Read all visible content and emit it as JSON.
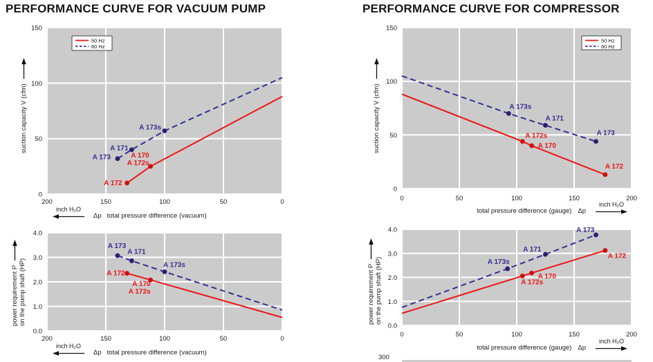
{
  "columns": [
    {
      "title": "PERFORMANCE CURVE FOR VACUUM PUMP"
    },
    {
      "title": "PERFORMANCE CURVE FOR COMPRESSOR"
    }
  ],
  "colors": {
    "hz50": "#ee1414",
    "hz60": "#362e92",
    "marker_hz50": "#c01212",
    "marker_hz60": "#27215f",
    "panel": "#cbcbcb",
    "grid": "#ffffff",
    "text": "#1a1a1a"
  },
  "cutoff": {
    "label": "300"
  },
  "chart_data": [
    {
      "id": "vacuum-suction-capacity",
      "type": "line",
      "ylabel": [
        "suction capacity V (cfm)"
      ],
      "xlabel": "total pressure difference (vacuum)",
      "dp": "Δp",
      "x_unit": "inch H₂O",
      "x_arrow": "left",
      "x_reversed": true,
      "xlim": [
        0,
        200
      ],
      "xticks": [
        0,
        50,
        100,
        150,
        200
      ],
      "xtick_labels": [
        "0",
        "50",
        "100",
        "150",
        "200"
      ],
      "ylim": [
        0,
        150
      ],
      "yticks": [
        0,
        50,
        100,
        150
      ],
      "ytick_labels": [
        "0",
        "50",
        "100",
        "150"
      ],
      "grid": true,
      "legend": {
        "position": "top-left"
      },
      "series": [
        {
          "name": "50 Hz",
          "color_key": "hz50",
          "dash": false,
          "points": [
            {
              "x": 132,
              "y": 10,
              "label": [
                "A 172"
              ],
              "anchor": "end",
              "dx": -7,
              "dy": 3,
              "marker": true
            },
            {
              "x": 112,
              "y": 25,
              "label": [
                "A 170",
                "A 172s"
              ],
              "anchor": "end",
              "dx": -2,
              "dy": -13,
              "marker": true
            },
            {
              "x": 0,
              "y": 88,
              "marker": false
            }
          ]
        },
        {
          "name": "60 Hz",
          "color_key": "hz60",
          "dash": true,
          "points": [
            {
              "x": 140,
              "y": 32,
              "label": [
                "A 173"
              ],
              "anchor": "end",
              "dx": -10,
              "dy": 1,
              "marker": true
            },
            {
              "x": 128,
              "y": 40,
              "label": [
                "A 171"
              ],
              "anchor": "end",
              "dx": -5,
              "dy": 1,
              "marker": true
            },
            {
              "x": 100,
              "y": 57,
              "label": [
                "A 173s"
              ],
              "anchor": "end",
              "dx": -5,
              "dy": -2,
              "marker": true
            },
            {
              "x": 0,
              "y": 105,
              "marker": false
            }
          ]
        }
      ]
    },
    {
      "id": "vacuum-power-requirement",
      "type": "line",
      "ylabel": [
        "power requirement P",
        "on the pump shaft (HP)"
      ],
      "xlabel": "total pressure difference (vacuum)",
      "dp": "Δp",
      "x_unit": "inch H₂O",
      "x_arrow": "left",
      "x_reversed": true,
      "xlim": [
        0,
        200
      ],
      "xticks": [
        0,
        50,
        100,
        150,
        200
      ],
      "xtick_labels": [
        "0",
        "50",
        "100",
        "150",
        "200"
      ],
      "ylim": [
        0,
        4
      ],
      "yticks": [
        0,
        1,
        2,
        3,
        4
      ],
      "ytick_labels": [
        "0.0",
        "1.0",
        "2.0",
        "3.0",
        "4.0"
      ],
      "grid": true,
      "legend": null,
      "series": [
        {
          "name": "50 Hz",
          "color_key": "hz50",
          "dash": false,
          "points": [
            {
              "x": 132,
              "y": 2.35,
              "label": [
                "A 172"
              ],
              "anchor": "end",
              "dx": -3,
              "dy": 3,
              "marker": true
            },
            {
              "x": 112,
              "y": 2.08,
              "label": [
                "A 170",
                "A 172s"
              ],
              "anchor": "end",
              "dx": 0,
              "dy": 9,
              "marker": true
            },
            {
              "x": 0,
              "y": 0.55,
              "marker": false
            }
          ]
        },
        {
          "name": "60 Hz",
          "color_key": "hz60",
          "dash": true,
          "points": [
            {
              "x": 140,
              "y": 3.07,
              "label": [
                "A 173"
              ],
              "anchor": "middle",
              "dx": -1,
              "dy": -11,
              "marker": true
            },
            {
              "x": 128,
              "y": 2.86,
              "label": [
                "A 171"
              ],
              "anchor": "middle",
              "dx": 7,
              "dy": -10,
              "marker": true
            },
            {
              "x": 100,
              "y": 2.41,
              "label": [
                "A 173s"
              ],
              "anchor": "start",
              "dx": -2,
              "dy": -7,
              "marker": true
            },
            {
              "x": 0,
              "y": 0.85,
              "marker": false
            }
          ]
        }
      ]
    },
    {
      "id": "compressor-suction-capacity",
      "type": "line",
      "ylabel": [
        "suction capacity V (cfm)"
      ],
      "xlabel": "total pressure difference (gauge)",
      "dp": "Δp",
      "x_unit": "inch H₂O",
      "x_arrow": "right",
      "x_reversed": false,
      "xlim": [
        0,
        200
      ],
      "xticks": [
        0,
        50,
        100,
        150,
        200
      ],
      "xtick_labels": [
        "0",
        "50",
        "100",
        "150",
        "200"
      ],
      "ylim": [
        0,
        150
      ],
      "yticks": [
        0,
        50,
        100,
        150
      ],
      "ytick_labels": [
        "0",
        "50",
        "100",
        "150"
      ],
      "grid": true,
      "legend": {
        "position": "top-right"
      },
      "series": [
        {
          "name": "50 Hz",
          "color_key": "hz50",
          "dash": false,
          "points": [
            {
              "x": 0,
              "y": 88,
              "marker": false
            },
            {
              "x": 105,
              "y": 44,
              "label": [
                "A 172s"
              ],
              "anchor": "start",
              "dx": 4,
              "dy": -5,
              "marker": true
            },
            {
              "x": 113,
              "y": 40,
              "label": [
                "A 170"
              ],
              "anchor": "start",
              "dx": 9,
              "dy": 3,
              "marker": true
            },
            {
              "x": 177,
              "y": 13,
              "label": [
                "A 172"
              ],
              "anchor": "start",
              "dx": 0,
              "dy": -9,
              "marker": true
            }
          ]
        },
        {
          "name": "60 Hz",
          "color_key": "hz60",
          "dash": true,
          "points": [
            {
              "x": 0,
              "y": 105,
              "marker": false
            },
            {
              "x": 93,
              "y": 70,
              "label": [
                "A 173s"
              ],
              "anchor": "start",
              "dx": 1,
              "dy": -7,
              "marker": true
            },
            {
              "x": 125,
              "y": 59,
              "label": [
                "A 171"
              ],
              "anchor": "start",
              "dx": 0,
              "dy": -7,
              "marker": true
            },
            {
              "x": 169,
              "y": 44,
              "label": [
                "A 173"
              ],
              "anchor": "start",
              "dx": 1,
              "dy": -9,
              "marker": true
            }
          ]
        }
      ]
    },
    {
      "id": "compressor-power-requirement",
      "type": "line",
      "ylabel": [
        "power requirement P",
        "on the pump shaft (HP)"
      ],
      "xlabel": "total pressure difference (gauge)",
      "dp": "Δp",
      "x_unit": "inch H₂O",
      "x_arrow": "right",
      "x_reversed": false,
      "xlim": [
        0,
        200
      ],
      "xticks": [
        0,
        50,
        100,
        150,
        200
      ],
      "xtick_labels": [
        "0",
        "50",
        "100",
        "150",
        "200"
      ],
      "ylim": [
        0,
        4
      ],
      "yticks": [
        0,
        1,
        2,
        3,
        4
      ],
      "ytick_labels": [
        "0.0",
        "1.0",
        "2.0",
        "3.0",
        "4.0"
      ],
      "grid": true,
      "legend": null,
      "series": [
        {
          "name": "50 Hz",
          "color_key": "hz50",
          "dash": false,
          "points": [
            {
              "x": 0,
              "y": 0.5,
              "marker": false
            },
            {
              "x": 105,
              "y": 2.06,
              "label": [
                "A 172s"
              ],
              "anchor": "start",
              "dx": -2,
              "dy": 12,
              "marker": true
            },
            {
              "x": 113,
              "y": 2.18,
              "label": [
                "A 170"
              ],
              "anchor": "start",
              "dx": 9,
              "dy": 8,
              "marker": true
            },
            {
              "x": 177,
              "y": 3.12,
              "label": [
                "A 172"
              ],
              "anchor": "start",
              "dx": 4,
              "dy": 11,
              "marker": true
            }
          ]
        },
        {
          "name": "60 Hz",
          "color_key": "hz60",
          "dash": true,
          "points": [
            {
              "x": 0,
              "y": 0.75,
              "marker": false
            },
            {
              "x": 92,
              "y": 2.36,
              "label": [
                "A 173s"
              ],
              "anchor": "end",
              "dx": 3,
              "dy": -7,
              "marker": true
            },
            {
              "x": 125,
              "y": 2.96,
              "label": [
                "A 171"
              ],
              "anchor": "end",
              "dx": -6,
              "dy": -4,
              "marker": true
            },
            {
              "x": 169,
              "y": 3.77,
              "label": [
                "A 173"
              ],
              "anchor": "end",
              "dx": -2,
              "dy": -4,
              "marker": true
            }
          ]
        }
      ]
    }
  ]
}
